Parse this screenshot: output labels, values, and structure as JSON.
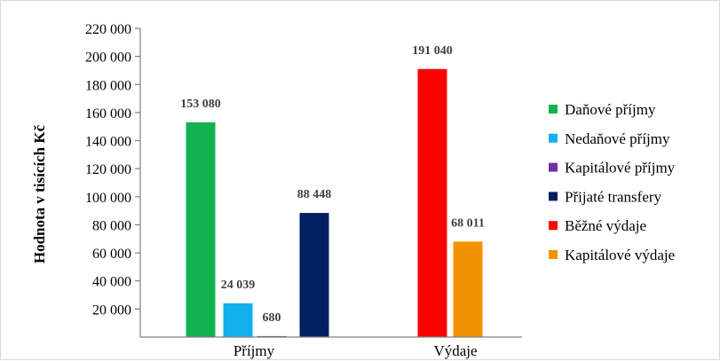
{
  "chart_data": {
    "type": "bar",
    "title": "",
    "xlabel": "",
    "ylabel": "Hodnota v tisících Kč",
    "ylim": [
      0,
      220000
    ],
    "y_ticks": [
      20000,
      40000,
      60000,
      80000,
      100000,
      120000,
      140000,
      160000,
      180000,
      200000,
      220000
    ],
    "y_tick_labels": [
      "20 000",
      "40 000",
      "60 000",
      "80 000",
      "100 000",
      "120 000",
      "140 000",
      "160 000",
      "180 000",
      "200 000",
      "220 000"
    ],
    "categories": [
      "Příjmy",
      "Výdaje"
    ],
    "grid": false,
    "legend_position": "right",
    "series": [
      {
        "name": "Daňové příjmy",
        "color": "#12b24f",
        "values": [
          153080,
          null
        ],
        "labels": [
          "153 080",
          ""
        ]
      },
      {
        "name": "Nedaňové příjmy",
        "color": "#11b0ec",
        "values": [
          24039,
          null
        ],
        "labels": [
          "24 039",
          ""
        ]
      },
      {
        "name": "Kapitálové příjmy",
        "color": "#7030a0",
        "values": [
          680,
          null
        ],
        "labels": [
          "680",
          ""
        ]
      },
      {
        "name": "Přijaté transfery",
        "color": "#002060",
        "values": [
          88448,
          null
        ],
        "labels": [
          "88 448",
          ""
        ]
      },
      {
        "name": "Běžné výdaje",
        "color": "#ff0000",
        "values": [
          null,
          191040
        ],
        "labels": [
          "",
          "191 040"
        ]
      },
      {
        "name": "Kapitálové výdaje",
        "color": "#f39200",
        "values": [
          null,
          68011
        ],
        "labels": [
          "",
          "68 011"
        ]
      }
    ]
  }
}
